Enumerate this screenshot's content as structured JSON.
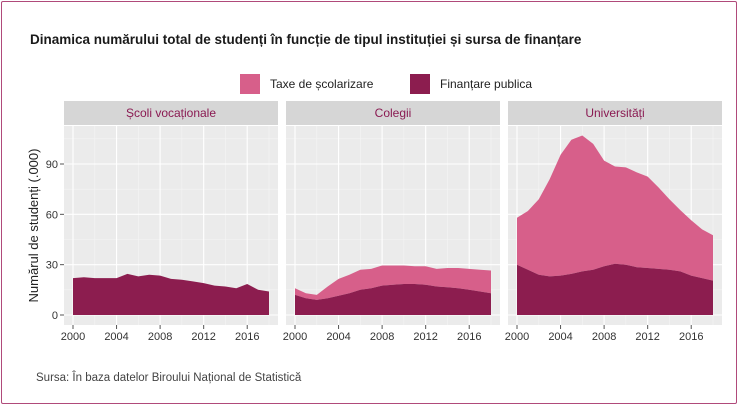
{
  "title": "Dinamica numărului total de studenți în funcție de tipul instituției și sursa de finanțare",
  "source": "Sursa: În baza datelor Biroului Național de Statistică",
  "colors": {
    "paid": "#d75f8a",
    "public": "#8c1d4f",
    "panel_bg": "#ebebeb",
    "grid": "#ffffff",
    "strip_bg": "#d6d6d6",
    "frame": "#b04a7a"
  },
  "chart_data": {
    "type": "area",
    "stacked": true,
    "ylabel": "Numărul de studenți (.000)",
    "xlabel": "",
    "ylim": [
      0,
      110
    ],
    "xlim": [
      2000,
      2018
    ],
    "yticks": [
      0,
      30,
      60,
      90
    ],
    "xticks": [
      2000,
      2004,
      2008,
      2012,
      2016
    ],
    "grid": true,
    "legend_position": "top",
    "legend": [
      {
        "key": "paid",
        "label": "Taxe de școlarizare"
      },
      {
        "key": "public",
        "label": "Finanțare publica"
      }
    ],
    "x": [
      2000,
      2001,
      2002,
      2003,
      2004,
      2005,
      2006,
      2007,
      2008,
      2009,
      2010,
      2011,
      2012,
      2013,
      2014,
      2015,
      2016,
      2017,
      2018
    ],
    "panels": [
      {
        "name": "Școli vocaționale",
        "series": [
          {
            "key": "public",
            "values": [
              22,
              22.5,
              22,
              22,
              22,
              24.5,
              23,
              24,
              23.5,
              21.5,
              21,
              20,
              19,
              17.5,
              17,
              16,
              18.5,
              15,
              14
            ]
          },
          {
            "key": "paid",
            "values": [
              0,
              0,
              0,
              0,
              0,
              0,
              0,
              0,
              0,
              0,
              0,
              0,
              0,
              0,
              0,
              0,
              0,
              0,
              0
            ]
          }
        ]
      },
      {
        "name": "Colegii",
        "series": [
          {
            "key": "public",
            "values": [
              12,
              10,
              9,
              10,
              11.5,
              13,
              15,
              16,
              17.5,
              18,
              18.5,
              18.5,
              18,
              17,
              16.5,
              16,
              15,
              14,
              13
            ]
          },
          {
            "key": "paid",
            "values": [
              4,
              3,
              3,
              7,
              10,
              11,
              12,
              11.5,
              12,
              11.5,
              11,
              10.5,
              11,
              10.5,
              11.5,
              12,
              12.5,
              13,
              13.5
            ]
          }
        ]
      },
      {
        "name": "Universități",
        "series": [
          {
            "key": "public",
            "values": [
              30,
              27,
              24,
              23,
              23.5,
              24.5,
              26,
              27,
              29,
              30.5,
              30,
              28.5,
              28,
              27.5,
              27,
              26,
              23.5,
              22,
              20.5
            ]
          },
          {
            "key": "paid",
            "values": [
              28,
              35,
              45,
              58,
              72,
              80,
              81,
              75,
              63,
              58,
              58,
              56.5,
              54.5,
              48.5,
              42,
              36.5,
              33,
              29,
              27
            ]
          }
        ]
      }
    ]
  }
}
